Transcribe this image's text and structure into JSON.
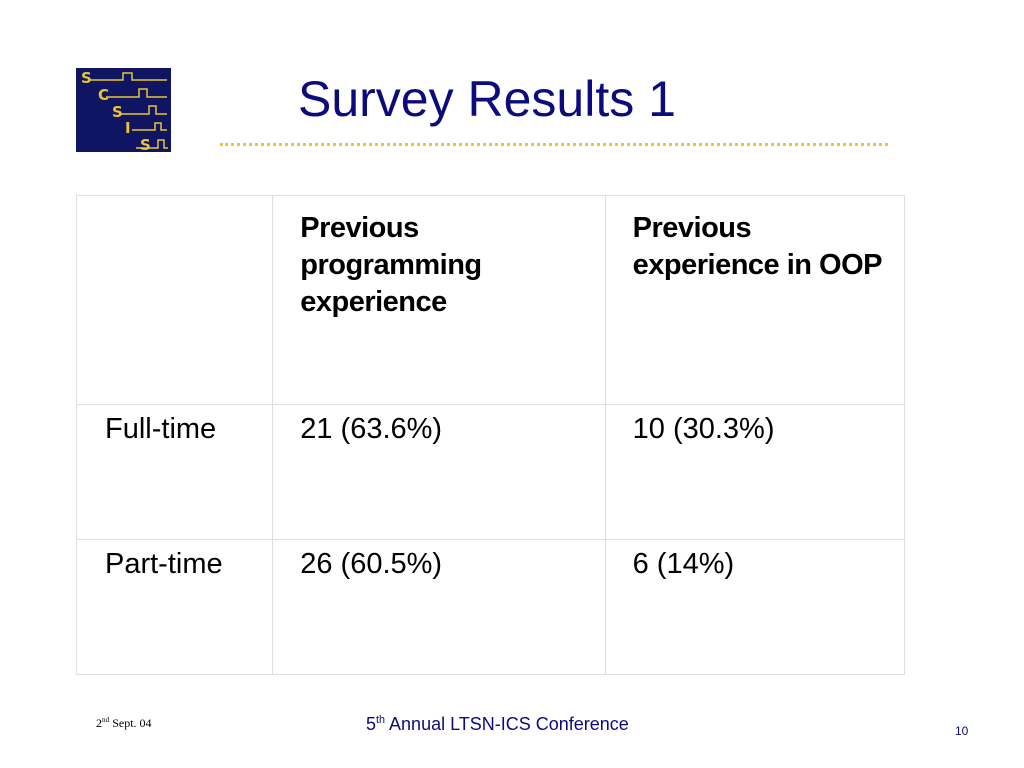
{
  "slide": {
    "title": "Survey Results 1",
    "logo": {
      "letters": [
        "S",
        "C",
        "S",
        "I",
        "S"
      ],
      "colors": {
        "background": "#0f1563",
        "accent": "#e9c531"
      }
    },
    "table": {
      "header": [
        "",
        "Previous programming experience",
        "Previous experience in OOP"
      ],
      "rows": [
        {
          "label": "Full-time",
          "values": [
            "21 (63.6%)",
            "10 (30.3%)"
          ]
        },
        {
          "label": "Part-time",
          "values": [
            "26 (60.5%)",
            "6 (14%)"
          ]
        }
      ]
    },
    "footer": {
      "date": {
        "day": "2",
        "suffix": "nd",
        "rest": " Sept. 04"
      },
      "conference": {
        "number": "5",
        "suffix": "th",
        "rest": " Annual LTSN-ICS Conference"
      },
      "page_number": "10"
    },
    "colors": {
      "title": "#0b0b7e",
      "rule": "#e9c531",
      "footer_text": "#0b0b7e"
    }
  }
}
